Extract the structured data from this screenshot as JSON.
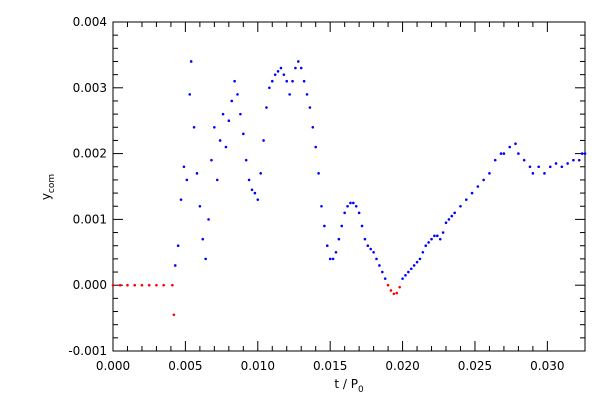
{
  "chart_data": {
    "type": "scatter",
    "xlabel": {
      "text": "t / P",
      "subscript": "0"
    },
    "ylabel": {
      "text": "y",
      "subscript": "com"
    },
    "color": "#0000ff",
    "nonpositive_color": "#ff0000",
    "xlim": [
      0,
      0.0326
    ],
    "ylim": [
      -0.001,
      0.004
    ],
    "xticks": [
      {
        "value": 0,
        "label": "0.000"
      },
      0.005,
      {
        "value": 0.01,
        "label": "0.010"
      },
      0.015,
      {
        "value": 0.02,
        "label": "0.020"
      },
      0.025,
      {
        "value": 0.03,
        "label": "0.030"
      }
    ],
    "yticks": [
      -0.001,
      {
        "value": 0,
        "label": "0.000"
      },
      0.001,
      0.002,
      0.003,
      0.004
    ],
    "x": [
      0,
      0.0005,
      0.001,
      0.0015,
      0.002,
      0.0025,
      0.003,
      0.0035,
      0.0041,
      0.0042,
      0.0043,
      0.0045,
      0.0047,
      0.0049,
      0.0051,
      0.0053,
      0.0054,
      0.0056,
      0.0058,
      0.006,
      0.0062,
      0.0064,
      0.0066,
      0.0068,
      0.007,
      0.0072,
      0.0074,
      0.0076,
      0.0078,
      0.008,
      0.0082,
      0.0084,
      0.0086,
      0.0088,
      0.009,
      0.0092,
      0.0094,
      0.0096,
      0.0098,
      0.01,
      0.0102,
      0.0104,
      0.0106,
      0.0108,
      0.011,
      0.0112,
      0.0114,
      0.0116,
      0.0118,
      0.012,
      0.0122,
      0.0124,
      0.0126,
      0.0128,
      0.013,
      0.0132,
      0.0134,
      0.0136,
      0.0138,
      0.014,
      0.0142,
      0.0144,
      0.0146,
      0.0148,
      0.015,
      0.0152,
      0.0154,
      0.0156,
      0.0158,
      0.016,
      0.0162,
      0.0164,
      0.0166,
      0.0168,
      0.017,
      0.0172,
      0.0174,
      0.0176,
      0.0178,
      0.018,
      0.0182,
      0.0184,
      0.0186,
      0.0188,
      0.019,
      0.0192,
      0.0194,
      0.0196,
      0.0198,
      0.02,
      0.0202,
      0.0204,
      0.0206,
      0.0208,
      0.021,
      0.0212,
      0.0214,
      0.0216,
      0.0218,
      0.022,
      0.0222,
      0.0224,
      0.0226,
      0.0228,
      0.023,
      0.0232,
      0.0234,
      0.0236,
      0.024,
      0.0244,
      0.0248,
      0.0252,
      0.0256,
      0.026,
      0.0264,
      0.0268,
      0.027,
      0.0274,
      0.0278,
      0.028,
      0.0284,
      0.0288,
      0.029,
      0.0294,
      0.0298,
      0.0302,
      0.0306,
      0.031,
      0.0314,
      0.0318,
      0.0322,
      0.0324,
      0.0326
    ],
    "values": [
      0,
      0,
      0,
      0,
      0,
      0,
      0,
      0,
      0,
      -0.00045,
      0.0003,
      0.0006,
      0.0013,
      0.0018,
      0.0016,
      0.0029,
      0.0034,
      0.0024,
      0.0017,
      0.0012,
      0.0007,
      0.0004,
      0.001,
      0.0019,
      0.0024,
      0.0016,
      0.0022,
      0.0026,
      0.0021,
      0.0025,
      0.0028,
      0.0031,
      0.0029,
      0.0026,
      0.0023,
      0.0019,
      0.0016,
      0.00145,
      0.0014,
      0.0013,
      0.0017,
      0.0022,
      0.0027,
      0.003,
      0.0031,
      0.0032,
      0.00325,
      0.0033,
      0.0032,
      0.0031,
      0.0029,
      0.0031,
      0.0033,
      0.0034,
      0.0033,
      0.0031,
      0.0029,
      0.0027,
      0.0024,
      0.0021,
      0.0017,
      0.0012,
      0.0009,
      0.0006,
      0.0004,
      0.0004,
      0.0005,
      0.0007,
      0.0009,
      0.0011,
      0.0012,
      0.00125,
      0.00125,
      0.0012,
      0.0011,
      0.0009,
      0.0007,
      0.0006,
      0.00055,
      0.0005,
      0.0004,
      0.0003,
      0.0002,
      0.0001,
      0,
      -8e-05,
      -0.00013,
      -0.00012,
      -3e-05,
      0.0001,
      0.00015,
      0.0002,
      0.00025,
      0.0003,
      0.00035,
      0.0004,
      0.0005,
      0.0006,
      0.00065,
      0.0007,
      0.00075,
      0.00075,
      0.0007,
      0.0008,
      0.00095,
      0.001,
      0.00105,
      0.0011,
      0.0012,
      0.0013,
      0.0014,
      0.0015,
      0.0016,
      0.0017,
      0.0019,
      0.002,
      0.002,
      0.0021,
      0.00215,
      0.002,
      0.0019,
      0.0018,
      0.0017,
      0.0018,
      0.0017,
      0.0018,
      0.00185,
      0.0018,
      0.00185,
      0.0019,
      0.0019,
      0.002,
      0.002
    ]
  }
}
